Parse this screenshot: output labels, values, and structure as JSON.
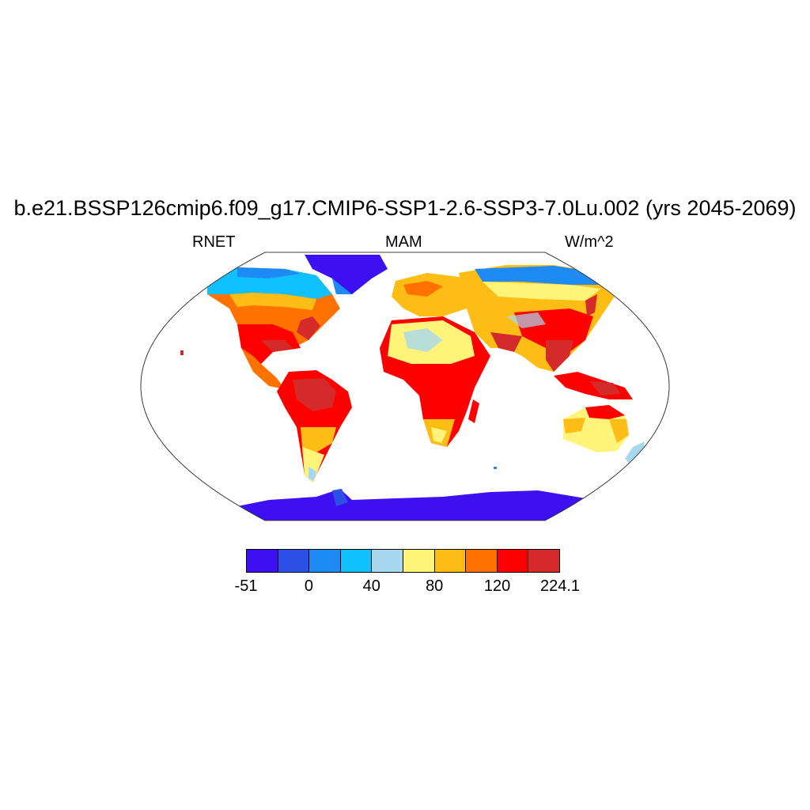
{
  "title": "b.e21.BSSP126cmip6.f09_g17.CMIP6-SSP1-2.6-SSP3-7.0Lu.002 (yrs 2045-2069)",
  "subtitle_left": "RNET",
  "subtitle_center": "MAM",
  "subtitle_right": "W/m^2",
  "colorbar": {
    "colors": [
      "#3d10f2",
      "#2c4fe6",
      "#1e8af5",
      "#10c0ff",
      "#a8d8f0",
      "#fff47a",
      "#fdbd14",
      "#ff7200",
      "#ff0000",
      "#d42a2a"
    ],
    "labels": [
      "-51",
      "0",
      "40",
      "80",
      "120",
      "224.1"
    ],
    "label_values": [
      -51,
      0,
      40,
      80,
      120,
      224.1
    ]
  }
}
